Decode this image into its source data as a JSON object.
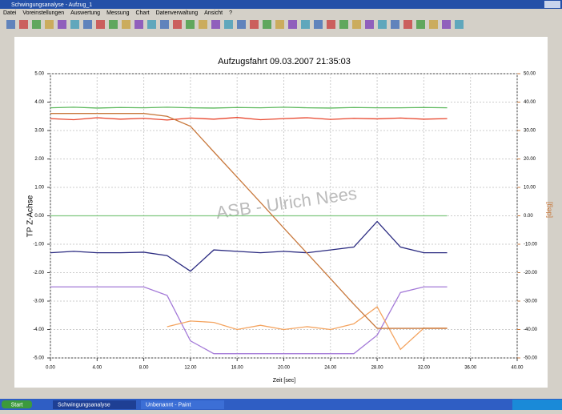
{
  "window": {
    "title": "Schwingungsanalyse - Aufzug_1",
    "menu": [
      "Datei",
      "Voreinstellungen",
      "Auswertung",
      "Messung",
      "Chart",
      "Datenverwaltung",
      "Ansicht",
      "?"
    ]
  },
  "taskbar": {
    "start": "Start",
    "tasks": [
      "Schwingungsanalyse",
      "Unbenannt - Paint"
    ]
  },
  "chart_data": {
    "type": "line",
    "title": "Aufzugsfahrt 09.03.2007 21:35:03",
    "watermark": "ASB - Ulrich Nees",
    "ylabel": "TP Z-Achse",
    "y2label": "[deg]",
    "xlabel": "Zeit [sec]",
    "x": [
      0,
      2,
      4,
      6,
      8,
      10,
      12,
      14,
      16,
      18,
      20,
      22,
      24,
      26,
      28,
      30,
      32,
      34
    ],
    "xlim": [
      0,
      40
    ],
    "xticks": [
      {
        "value": 0,
        "label": "0.00"
      },
      {
        "value": 4,
        "label": "4.00"
      },
      {
        "value": 8,
        "label": "8.00"
      },
      {
        "value": 12,
        "label": "12.00"
      },
      {
        "value": 16,
        "label": "16.00"
      },
      {
        "value": 20,
        "label": "20.00"
      },
      {
        "value": 24,
        "label": "24.00"
      },
      {
        "value": 28,
        "label": "28.00"
      },
      {
        "value": 32,
        "label": "32.00"
      },
      {
        "value": 36,
        "label": "36.00"
      },
      {
        "value": 40,
        "label": "40.00"
      }
    ],
    "ylim": [
      -5,
      5
    ],
    "yticks": [
      {
        "value": 5,
        "label": "5.00"
      },
      {
        "value": 4,
        "label": "4.00"
      },
      {
        "value": 3,
        "label": "3.00"
      },
      {
        "value": 2,
        "label": "2.00"
      },
      {
        "value": 1,
        "label": "1.00"
      },
      {
        "value": 0,
        "label": "0.00"
      },
      {
        "value": -1,
        "label": "-1.00"
      },
      {
        "value": -2,
        "label": "-2.00"
      },
      {
        "value": -3,
        "label": "-3.00"
      },
      {
        "value": -4,
        "label": "-4.00"
      },
      {
        "value": -5,
        "label": "-5.00"
      }
    ],
    "y2lim": [
      -50,
      50
    ],
    "y2ticks": [
      {
        "value": 50,
        "label": "50.00"
      },
      {
        "value": 40,
        "label": "40.00"
      },
      {
        "value": 30,
        "label": "30.00"
      },
      {
        "value": 20,
        "label": "20.00"
      },
      {
        "value": 10,
        "label": "10.00"
      },
      {
        "value": 0,
        "label": "0.00"
      },
      {
        "value": -10,
        "label": "-10.00"
      },
      {
        "value": -20,
        "label": "-20.00"
      },
      {
        "value": -30,
        "label": "-30.00"
      },
      {
        "value": -40,
        "label": "-40.00"
      },
      {
        "value": -50,
        "label": "-50.00"
      }
    ],
    "grid": true,
    "series": [
      {
        "color": "#5cb85c",
        "values": [
          3.8,
          3.82,
          3.79,
          3.81,
          3.8,
          3.82,
          3.8,
          3.79,
          3.81,
          3.8,
          3.82,
          3.8,
          3.79,
          3.81,
          3.8,
          3.8,
          3.81,
          3.8
        ]
      },
      {
        "color": "#e8452c",
        "values": [
          3.42,
          3.38,
          3.45,
          3.4,
          3.43,
          3.37,
          3.44,
          3.4,
          3.46,
          3.38,
          3.42,
          3.45,
          3.39,
          3.43,
          3.41,
          3.44,
          3.4,
          3.42
        ]
      },
      {
        "color": "#7fc87f",
        "values": [
          0,
          0,
          0,
          0,
          0,
          0,
          0,
          0,
          0,
          0,
          0,
          0,
          0,
          0,
          0,
          0,
          0,
          0
        ]
      },
      {
        "color": "#2a2a80",
        "values": [
          -1.3,
          -1.25,
          -1.3,
          -1.3,
          -1.28,
          -1.4,
          -1.95,
          -1.2,
          -1.25,
          -1.3,
          -1.25,
          -1.3,
          -1.2,
          -1.1,
          -0.2,
          -1.1,
          -1.3,
          -1.3
        ]
      },
      {
        "color": "#a47ad8",
        "values": [
          -2.5,
          -2.5,
          -2.5,
          -2.5,
          -2.5,
          -2.8,
          -4.4,
          -4.85,
          -4.85,
          -4.85,
          -4.85,
          -4.85,
          -4.85,
          -4.85,
          -4.2,
          -2.7,
          -2.5,
          -2.5
        ]
      },
      {
        "color": "#f4a460",
        "values": [
          null,
          null,
          null,
          null,
          null,
          -3.9,
          -3.7,
          -3.75,
          -4.0,
          -3.85,
          -4.0,
          -3.9,
          -4.0,
          -3.8,
          -3.2,
          -4.7,
          -3.95,
          -3.95
        ]
      },
      {
        "color": "#c8783c",
        "axis": "y2",
        "values": [
          36,
          36,
          36,
          36,
          36,
          35,
          31.5,
          22.5,
          13.6,
          4.7,
          -4.3,
          -13.2,
          -22.1,
          -31.1,
          -39.6,
          -39.6,
          -39.6,
          -39.6
        ]
      }
    ]
  }
}
